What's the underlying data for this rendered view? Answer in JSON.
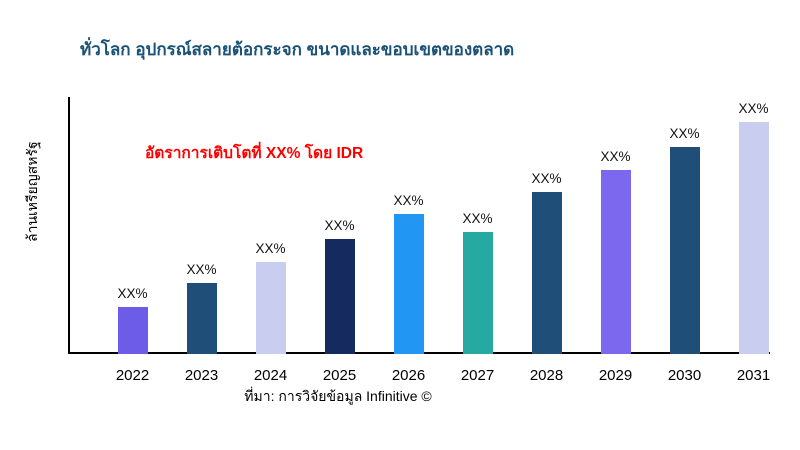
{
  "chart_data": {
    "type": "bar",
    "title": "ทั่วโลก อุปกรณ์สลายต้อกระจก ขนาดและขอบเขตของตลาด",
    "ylabel": "ล้านเหรียญสหรัฐ",
    "xlabel": "",
    "annotation": "อัตราการเติบโตที่ XX% โดย IDR",
    "source": "ที่มา: การวิจัยข้อมูล Infinitive ©",
    "categories": [
      "2022",
      "2023",
      "2024",
      "2025",
      "2026",
      "2027",
      "2028",
      "2029",
      "2030",
      "2031"
    ],
    "values": [
      47,
      71,
      92,
      115,
      140,
      122,
      162,
      184,
      207,
      232
    ],
    "bar_labels": [
      "XX%",
      "XX%",
      "XX%",
      "XX%",
      "XX%",
      "XX%",
      "XX%",
      "XX%",
      "XX%",
      "XX%"
    ],
    "bar_colors": [
      "#6C5CE7",
      "#1F4E79",
      "#C9CDF0",
      "#152A5E",
      "#2196F3",
      "#26A9A0",
      "#1F4E79",
      "#7B68EE",
      "#1F4E79",
      "#C9CDF0"
    ],
    "ylim": [
      0,
      255
    ],
    "grid": false,
    "legend": false,
    "colors": {
      "title": "#1A5276",
      "annotation": "#FF0000",
      "axis": "#000000",
      "background": "#FFFFFF"
    }
  }
}
